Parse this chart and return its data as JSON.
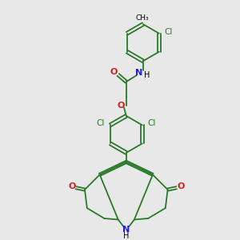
{
  "bg_color": "#e8e8e8",
  "bond_color": "#2a7a2a",
  "n_color": "#1a1aee",
  "o_color": "#cc2222",
  "cl_color": "#2a7a2a",
  "text_color": "#000000",
  "line_width": 1.3,
  "figsize": [
    3.0,
    3.0
  ],
  "dpi": 100,
  "xlim": [
    0,
    10
  ],
  "ylim": [
    0,
    10
  ]
}
